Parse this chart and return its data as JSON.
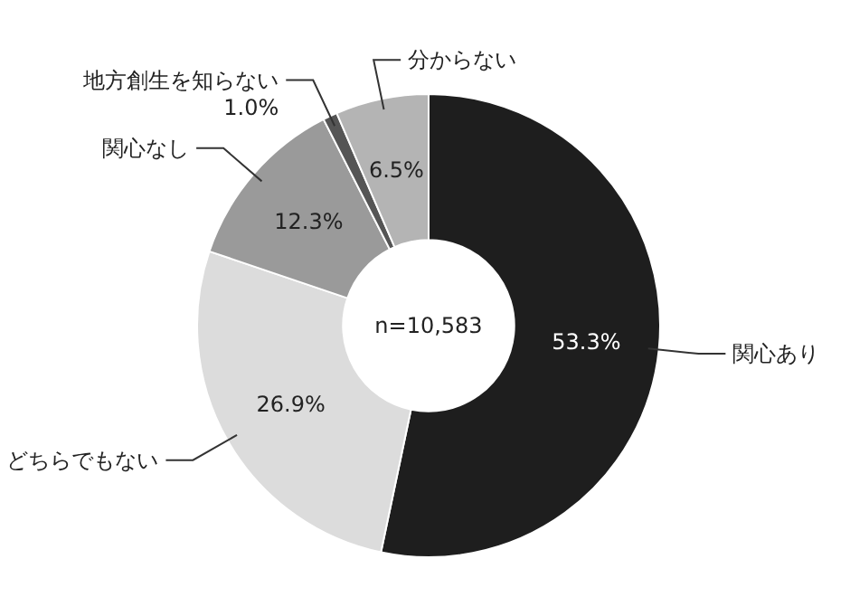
{
  "chart_data": {
    "type": "donut",
    "categories": [
      "関心あり",
      "どちらでもない",
      "関心なし",
      "地方創生を知らない",
      "分からない"
    ],
    "values": [
      53.3,
      26.9,
      12.3,
      1.0,
      6.5
    ],
    "colors": [
      "#1e1e1e",
      "#dcdcdc",
      "#9a9a9a",
      "#555555",
      "#b4b4b4"
    ],
    "value_labels": [
      "53.3%",
      "26.9%",
      "12.3%",
      "1.0%",
      "6.5%"
    ],
    "annotations": [
      "n=10,583"
    ]
  }
}
